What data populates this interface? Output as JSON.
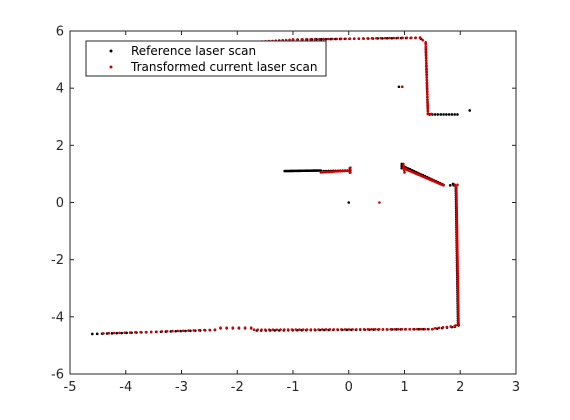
{
  "chart_data": {
    "type": "scatter",
    "title": "",
    "xlabel": "",
    "ylabel": "",
    "xlim": [
      -5,
      3
    ],
    "ylim": [
      -6,
      6
    ],
    "xticks": [
      -5,
      -4,
      -3,
      -2,
      -1,
      0,
      1,
      2,
      3
    ],
    "yticks": [
      -6,
      -4,
      -2,
      0,
      2,
      4,
      6
    ],
    "grid": false,
    "legend_position": "top-left",
    "series": [
      {
        "name": "Reference laser scan",
        "color": "#000000",
        "segments": [
          {
            "from": [
              -4.6,
              -4.6
            ],
            "to": [
              -2.4,
              -4.46
            ],
            "n": 26
          },
          {
            "from": [
              -2.3,
              -4.4
            ],
            "to": [
              -1.75,
              -4.4
            ],
            "n": 6
          },
          {
            "from": [
              -1.65,
              -4.48
            ],
            "to": [
              1.5,
              -4.43
            ],
            "n": 40
          },
          {
            "from": [
              1.5,
              -4.43
            ],
            "to": [
              1.85,
              -4.36
            ],
            "n": 5
          },
          {
            "from": [
              1.9,
              -4.35
            ],
            "to": [
              1.97,
              -4.3
            ],
            "n": 2
          },
          {
            "from": [
              1.96,
              -4.28
            ],
            "to": [
              1.92,
              0.55
            ],
            "n": 65
          },
          {
            "from": [
              1.9,
              0.62
            ],
            "to": [
              1.87,
              0.65
            ],
            "n": 2
          },
          {
            "from": [
              1.82,
              0.6
            ],
            "to": [
              1.88,
              0.6
            ],
            "n": 2
          },
          {
            "from": [
              1.0,
              1.25
            ],
            "to": [
              1.7,
              0.62
            ],
            "n": 22
          },
          {
            "from": [
              0.95,
              1.35
            ],
            "to": [
              0.95,
              1.2
            ],
            "n": 3
          },
          {
            "from": [
              -1.15,
              1.1
            ],
            "to": [
              -0.5,
              1.12
            ],
            "n": 34
          },
          {
            "from": [
              -0.45,
              1.1
            ],
            "to": [
              0.02,
              1.12
            ],
            "n": 12
          },
          {
            "from": [
              0.02,
              1.05
            ],
            "to": [
              0.02,
              1.2
            ],
            "n": 3
          },
          {
            "from": [
              0.0,
              0.0
            ],
            "to": [
              0.0,
              0.0
            ],
            "n": 1
          },
          {
            "from": [
              -1.0,
              5.7
            ],
            "to": [
              1.28,
              5.76
            ],
            "n": 28
          },
          {
            "from": [
              1.3,
              5.72
            ],
            "to": [
              1.38,
              5.6
            ],
            "n": 2
          },
          {
            "from": [
              1.38,
              5.55
            ],
            "to": [
              1.42,
              3.1
            ],
            "n": 26
          },
          {
            "from": [
              1.45,
              3.08
            ],
            "to": [
              1.95,
              3.08
            ],
            "n": 11
          },
          {
            "from": [
              2.17,
              3.22
            ],
            "to": [
              2.17,
              3.22
            ],
            "n": 1
          },
          {
            "from": [
              0.9,
              4.05
            ],
            "to": [
              0.96,
              4.05
            ],
            "n": 2
          }
        ]
      },
      {
        "name": "Transformed current laser scan",
        "color": "#d40000",
        "segments": [
          {
            "from": [
              -4.4,
              -4.58
            ],
            "to": [
              -2.4,
              -4.45
            ],
            "n": 22
          },
          {
            "from": [
              -2.3,
              -4.38
            ],
            "to": [
              -1.75,
              -4.38
            ],
            "n": 6
          },
          {
            "from": [
              -1.7,
              -4.45
            ],
            "to": [
              1.5,
              -4.43
            ],
            "n": 48
          },
          {
            "from": [
              1.55,
              -4.4
            ],
            "to": [
              1.9,
              -4.32
            ],
            "n": 6
          },
          {
            "from": [
              1.92,
              -4.3
            ],
            "to": [
              1.97,
              -4.27
            ],
            "n": 2
          },
          {
            "from": [
              1.97,
              -4.25
            ],
            "to": [
              1.93,
              0.55
            ],
            "n": 80
          },
          {
            "from": [
              1.9,
              0.6
            ],
            "to": [
              1.95,
              0.62
            ],
            "n": 2
          },
          {
            "from": [
              0.98,
              1.2
            ],
            "to": [
              1.7,
              0.6
            ],
            "n": 36
          },
          {
            "from": [
              0.98,
              1.35
            ],
            "to": [
              1.0,
              1.05
            ],
            "n": 5
          },
          {
            "from": [
              -0.5,
              1.05
            ],
            "to": [
              0.03,
              1.12
            ],
            "n": 16
          },
          {
            "from": [
              0.03,
              1.05
            ],
            "to": [
              0.03,
              1.22
            ],
            "n": 3
          },
          {
            "from": [
              0.55,
              0.0
            ],
            "to": [
              0.55,
              0.0
            ],
            "n": 1
          },
          {
            "from": [
              -1.8,
              5.6
            ],
            "to": [
              -1.0,
              5.7
            ],
            "n": 14
          },
          {
            "from": [
              -1.0,
              5.7
            ],
            "to": [
              1.28,
              5.77
            ],
            "n": 30
          },
          {
            "from": [
              1.28,
              5.75
            ],
            "to": [
              1.38,
              5.6
            ],
            "n": 3
          },
          {
            "from": [
              1.38,
              5.55
            ],
            "to": [
              1.42,
              3.1
            ],
            "n": 30
          },
          {
            "from": [
              1.42,
              3.1
            ],
            "to": [
              1.48,
              3.1
            ],
            "n": 2
          },
          {
            "from": [
              0.96,
              4.05
            ],
            "to": [
              0.96,
              4.05
            ],
            "n": 1
          }
        ]
      }
    ]
  }
}
